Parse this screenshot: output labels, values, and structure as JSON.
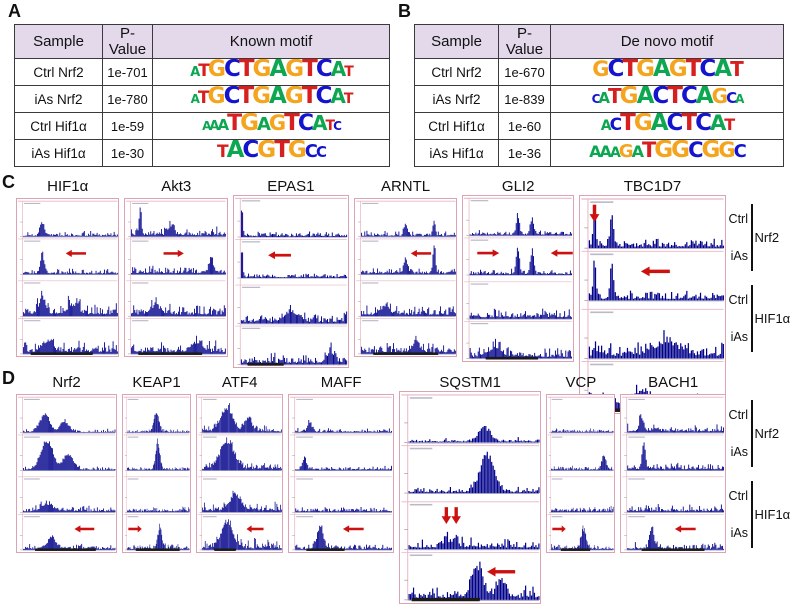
{
  "colors": {
    "header_bg": "#e3d9ea",
    "signal": "#00008b",
    "arrow": "#cc1111",
    "panel_border": "#dba4b4",
    "base_A": "#0ca750",
    "base_C": "#1414cf",
    "base_G": "#f5a41e",
    "base_T": "#d62020"
  },
  "panelA": {
    "label": "A",
    "headers": {
      "sample": "Sample",
      "pvalue": "P-Value",
      "motif": "Known motif"
    },
    "rows": [
      {
        "sample": "Ctrl Nrf2",
        "pvalue": "1e-701",
        "motif": {
          "letters": "ATGCTGAGTCAT",
          "heights": [
            0.55,
            0.75,
            0.95,
            1,
            1,
            1,
            1,
            1,
            1,
            1,
            0.85,
            0.6
          ]
        }
      },
      {
        "sample": "iAs Nrf2",
        "pvalue": "1e-780",
        "motif": {
          "letters": "ATGCTGAGTCAT",
          "heights": [
            0.5,
            0.75,
            0.95,
            1,
            1,
            1,
            1,
            1,
            1,
            1,
            0.85,
            0.6
          ]
        }
      },
      {
        "sample": "Ctrl Hif1α",
        "pvalue": "1e-59",
        "motif": {
          "letters": "AAATGAGTCATC",
          "heights": [
            0.5,
            0.55,
            0.65,
            0.95,
            1,
            0.8,
            0.9,
            1,
            0.95,
            0.85,
            0.6,
            0.5
          ]
        }
      },
      {
        "sample": "iAs Hif1α",
        "pvalue": "1e-30",
        "motif": {
          "letters": "TACGTGCC",
          "heights": [
            0.75,
            1,
            1,
            1,
            1,
            1,
            0.8,
            0.65
          ]
        }
      }
    ]
  },
  "panelB": {
    "label": "B",
    "headers": {
      "sample": "Sample",
      "pvalue": "P-Value",
      "motif": "De novo motif"
    },
    "rows": [
      {
        "sample": "Ctrl Nrf2",
        "pvalue": "1e-670",
        "motif": {
          "letters": "GCTGAGTCAT",
          "heights": [
            0.9,
            1,
            1,
            1,
            1,
            1,
            1,
            1,
            1,
            0.85
          ]
        }
      },
      {
        "sample": "iAs Nrf2",
        "pvalue": "1e-839",
        "motif": {
          "letters": "CATGACTCAGCA",
          "heights": [
            0.5,
            0.65,
            0.85,
            1,
            1,
            1,
            1,
            1,
            1,
            0.85,
            0.65,
            0.5
          ]
        }
      },
      {
        "sample": "Ctrl Hif1α",
        "pvalue": "1e-60",
        "motif": {
          "letters": "ACTGACTCAT",
          "heights": [
            0.6,
            0.75,
            1,
            1,
            1,
            1,
            1,
            1,
            0.9,
            0.7
          ]
        }
      },
      {
        "sample": "iAs Hif1α",
        "pvalue": "1e-36",
        "motif": {
          "letters": "AAAGATGGCGGC",
          "heights": [
            0.7,
            0.7,
            0.6,
            0.8,
            0.7,
            0.9,
            1,
            1,
            0.9,
            1,
            0.9,
            0.8
          ]
        }
      }
    ]
  },
  "panelC": {
    "label": "C",
    "groups": [
      {
        "name": "Nrf2",
        "tracks": [
          "Ctrl",
          "iAs"
        ]
      },
      {
        "name": "HIF1α",
        "tracks": [
          "Ctrl",
          "iAs"
        ]
      }
    ],
    "panels": [
      {
        "gene": "HIF1α",
        "flex": 1,
        "tracks": [
          {
            "n": 0.18,
            "p": [
              [
                0.25,
                0.45,
                0.02
              ]
            ]
          },
          {
            "n": 0.18,
            "p": [
              [
                0.25,
                0.6,
                0.02
              ]
            ]
          },
          {
            "n": 0.45,
            "p": [
              [
                0.25,
                0.55,
                0.03
              ],
              [
                0.55,
                0.3,
                0.05
              ]
            ]
          },
          {
            "n": 0.45,
            "p": [
              [
                0.3,
                0.35,
                0.05
              ]
            ]
          }
        ],
        "arrows": [
          {
            "t": 1,
            "x": 0.48,
            "d": "left"
          }
        ]
      },
      {
        "gene": "Akt3",
        "flex": 1,
        "tracks": [
          {
            "n": 0.3,
            "p": [
              [
                0.15,
                0.85,
                0.012
              ],
              [
                0.45,
                0.3,
                0.03
              ]
            ]
          },
          {
            "n": 0.3,
            "p": [
              [
                0.85,
                0.5,
                0.02
              ]
            ]
          },
          {
            "n": 0.4,
            "p": [
              [
                0.3,
                0.25,
                0.05
              ]
            ]
          },
          {
            "n": 0.4,
            "p": [
              [
                0.7,
                0.3,
                0.05
              ]
            ]
          }
        ],
        "arrows": [
          {
            "t": 1,
            "x": 0.58,
            "d": "right"
          }
        ]
      },
      {
        "gene": "EPAS1",
        "flex": 1.12,
        "tracks": [
          {
            "n": 0.15,
            "p": [
              [
                0.07,
                0.95,
                0.008
              ]
            ]
          },
          {
            "n": 0.15,
            "p": [
              [
                0.07,
                0.85,
                0.008
              ]
            ]
          },
          {
            "n": 0.35,
            "p": [
              [
                0.5,
                0.3,
                0.06
              ]
            ]
          },
          {
            "n": 0.35,
            "p": [
              [
                0.85,
                0.35,
                0.03
              ]
            ]
          }
        ],
        "arrows": [
          {
            "t": 1,
            "x": 0.3,
            "d": "left"
          }
        ]
      },
      {
        "gene": "ARNTL",
        "flex": 1,
        "tracks": [
          {
            "n": 0.2,
            "p": [
              [
                0.5,
                0.4,
                0.015
              ],
              [
                0.78,
                0.5,
                0.012
              ]
            ]
          },
          {
            "n": 0.2,
            "p": [
              [
                0.5,
                0.55,
                0.015
              ],
              [
                0.78,
                0.95,
                0.012
              ]
            ]
          },
          {
            "n": 0.35,
            "p": [
              [
                0.3,
                0.3,
                0.04
              ]
            ]
          },
          {
            "n": 0.35,
            "p": [
              [
                0.6,
                0.3,
                0.04
              ]
            ]
          }
        ],
        "arrows": [
          {
            "t": 1,
            "x": 0.55,
            "d": "left"
          }
        ]
      },
      {
        "gene": "GLI2",
        "flex": 1.08,
        "tracks": [
          {
            "n": 0.18,
            "p": [
              [
                0.5,
                0.6,
                0.015
              ],
              [
                0.63,
                0.5,
                0.015
              ]
            ]
          },
          {
            "n": 0.18,
            "p": [
              [
                0.5,
                0.85,
                0.015
              ],
              [
                0.63,
                0.75,
                0.015
              ]
            ]
          },
          {
            "n": 0.35,
            "p": []
          },
          {
            "n": 0.35,
            "p": [
              [
                0.3,
                0.3,
                0.05
              ]
            ]
          }
        ],
        "arrows": [
          {
            "t": 1,
            "x": 0.33,
            "d": "right"
          },
          {
            "t": 1,
            "x": 0.8,
            "d": "left"
          }
        ]
      },
      {
        "gene": "TBC1D7",
        "flex": 1.42,
        "tracks": [
          {
            "n": 0.25,
            "p": [
              [
                0.1,
                0.9,
                0.01
              ],
              [
                0.22,
                0.85,
                0.012
              ]
            ]
          },
          {
            "n": 0.25,
            "p": [
              [
                0.1,
                0.85,
                0.01
              ],
              [
                0.22,
                0.8,
                0.012
              ]
            ]
          },
          {
            "n": 0.45,
            "p": [
              [
                0.6,
                0.3,
                0.08
              ]
            ]
          },
          {
            "n": 0.45,
            "p": [
              [
                0.4,
                0.3,
                0.08
              ]
            ]
          }
        ],
        "arrows": [
          {
            "t": 0,
            "x": 0.1,
            "d": "down"
          },
          {
            "t": 1,
            "x": 0.42,
            "d": "left"
          }
        ]
      }
    ]
  },
  "panelD": {
    "label": "D",
    "groups": [
      {
        "name": "Nrf2",
        "tracks": [
          "Ctrl",
          "iAs"
        ]
      },
      {
        "name": "HIF1α",
        "tracks": [
          "Ctrl",
          "iAs"
        ]
      }
    ],
    "panels": [
      {
        "gene": "Nrf2",
        "flex": 1.1,
        "tracks": [
          {
            "n": 0.12,
            "p": [
              [
                0.28,
                0.55,
                0.05
              ],
              [
                0.48,
                0.35,
                0.04
              ]
            ]
          },
          {
            "n": 0.12,
            "p": [
              [
                0.3,
                0.95,
                0.06
              ],
              [
                0.52,
                0.5,
                0.05
              ]
            ]
          },
          {
            "n": 0.2,
            "p": [
              [
                0.3,
                0.25,
                0.05
              ]
            ]
          },
          {
            "n": 0.2,
            "p": [
              [
                0.35,
                0.4,
                0.04
              ]
            ]
          }
        ],
        "arrows": [
          {
            "t": 3,
            "x": 0.58,
            "d": "left"
          }
        ]
      },
      {
        "gene": "KEAP1",
        "flex": 0.75,
        "tracks": [
          {
            "n": 0.12,
            "p": [
              [
                0.5,
                0.65,
                0.035
              ]
            ]
          },
          {
            "n": 0.12,
            "p": [
              [
                0.52,
                0.95,
                0.03
              ]
            ]
          },
          {
            "n": 0.18,
            "p": []
          },
          {
            "n": 0.18,
            "p": [
              [
                0.55,
                0.7,
                0.03
              ]
            ]
          }
        ],
        "arrows": [
          {
            "t": 3,
            "x": 0.28,
            "d": "right"
          }
        ]
      },
      {
        "gene": "ATF4",
        "flex": 0.95,
        "tracks": [
          {
            "n": 0.25,
            "p": [
              [
                0.35,
                0.75,
                0.07
              ],
              [
                0.6,
                0.45,
                0.04
              ]
            ]
          },
          {
            "n": 0.3,
            "p": [
              [
                0.35,
                0.9,
                0.08
              ]
            ]
          },
          {
            "n": 0.35,
            "p": [
              [
                0.45,
                0.45,
                0.07
              ]
            ]
          },
          {
            "n": 0.35,
            "p": [
              [
                0.35,
                0.8,
                0.07
              ]
            ]
          }
        ],
        "arrows": [
          {
            "t": 3,
            "x": 0.58,
            "d": "left"
          }
        ]
      },
      {
        "gene": "MAFF",
        "flex": 1.15,
        "tracks": [
          {
            "n": 0.15,
            "p": [
              [
                0.2,
                0.3,
                0.02
              ]
            ]
          },
          {
            "n": 0.15,
            "p": [
              [
                0.15,
                0.35,
                0.02
              ]
            ]
          },
          {
            "n": 0.2,
            "p": []
          },
          {
            "n": 0.2,
            "p": [
              [
                0.3,
                0.75,
                0.03
              ]
            ]
          }
        ],
        "arrows": [
          {
            "t": 3,
            "x": 0.52,
            "d": "left"
          }
        ]
      },
      {
        "gene": "SQSTM1",
        "flex": 1.55,
        "tracks": [
          {
            "n": 0.12,
            "p": [
              [
                0.6,
                0.35,
                0.04
              ]
            ]
          },
          {
            "n": 0.15,
            "p": [
              [
                0.62,
                0.9,
                0.05
              ]
            ]
          },
          {
            "n": 0.3,
            "p": [
              [
                0.33,
                0.3,
                0.015
              ],
              [
                0.4,
                0.28,
                0.015
              ]
            ]
          },
          {
            "n": 0.35,
            "p": [
              [
                0.55,
                0.75,
                0.04
              ],
              [
                0.72,
                0.45,
                0.03
              ]
            ]
          }
        ],
        "arrows": [
          {
            "t": 2,
            "x": 0.33,
            "d": "down"
          },
          {
            "t": 2,
            "x": 0.4,
            "d": "down"
          },
          {
            "t": 3,
            "x": 0.62,
            "d": "left"
          }
        ]
      },
      {
        "gene": "VCP",
        "flex": 0.75,
        "tracks": [
          {
            "n": 0.15,
            "p": []
          },
          {
            "n": 0.15,
            "p": [
              [
                0.85,
                0.45,
                0.03
              ]
            ]
          },
          {
            "n": 0.2,
            "p": []
          },
          {
            "n": 0.2,
            "p": [
              [
                0.55,
                0.65,
                0.035
              ]
            ]
          }
        ],
        "arrows": [
          {
            "t": 3,
            "x": 0.28,
            "d": "right"
          }
        ]
      },
      {
        "gene": "BACH1",
        "flex": 1.15,
        "tracks": [
          {
            "n": 0.3,
            "p": [
              [
                0.2,
                0.45,
                0.02
              ]
            ]
          },
          {
            "n": 0.25,
            "p": [
              [
                0.22,
                0.85,
                0.015
              ]
            ]
          },
          {
            "n": 0.25,
            "p": []
          },
          {
            "n": 0.25,
            "p": [
              [
                0.3,
                0.75,
                0.02
              ]
            ]
          }
        ],
        "arrows": [
          {
            "t": 3,
            "x": 0.52,
            "d": "left"
          }
        ]
      }
    ]
  }
}
